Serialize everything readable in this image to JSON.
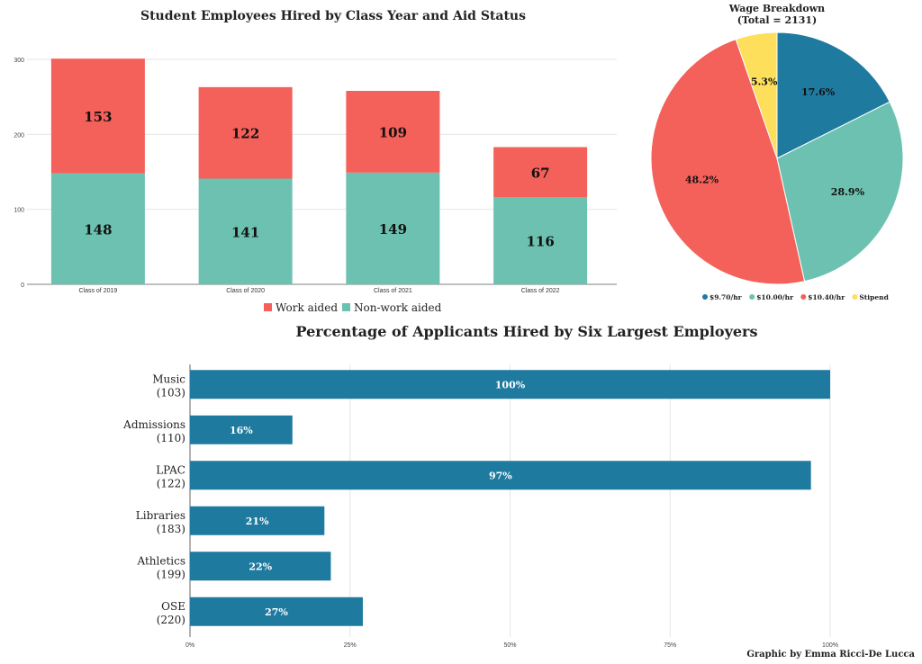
{
  "colors": {
    "red": "#f4605a",
    "teal": "#6cc1b0",
    "blue": "#1f7aa0",
    "yellow": "#fddf5c"
  },
  "credit": "Graphic by Emma Ricci-De Lucca",
  "chart_data": [
    {
      "type": "bar",
      "stacked": true,
      "orientation": "vertical",
      "title": "Student Employees Hired by Class Year and Aid Status",
      "categories": [
        "Class of 2019",
        "Class of 2020",
        "Class of 2021",
        "Class of 2022"
      ],
      "series": [
        {
          "name": "Non-work aided",
          "color": "#6cc1b0",
          "values": [
            148,
            141,
            149,
            116
          ]
        },
        {
          "name": "Work aided",
          "color": "#f4605a",
          "values": [
            153,
            122,
            109,
            67
          ]
        }
      ],
      "legend_order": [
        "Work aided",
        "Non-work aided"
      ],
      "ylim": [
        0,
        300
      ],
      "yticks": [
        "0",
        "100",
        "200",
        "300"
      ],
      "grid": true,
      "legend": "bottom"
    },
    {
      "type": "pie",
      "title": "Wage Breakdown",
      "subtitle": "(Total = 2131)",
      "slices": [
        {
          "label": "$9.70/hr",
          "value": 17.6,
          "display": "17.6%",
          "color": "#1f7aa0"
        },
        {
          "label": "$10.00/hr",
          "value": 28.9,
          "display": "28.9%",
          "color": "#6cc1b0"
        },
        {
          "label": "$10.40/hr",
          "value": 48.2,
          "display": "48.2%",
          "color": "#f4605a"
        },
        {
          "label": "Stipend",
          "value": 5.3,
          "display": "5.3%",
          "color": "#fddf5c"
        }
      ],
      "legend": "bottom"
    },
    {
      "type": "bar",
      "orientation": "horizontal",
      "title": "Percentage of Applicants Hired by Six Largest Employers",
      "categories": [
        {
          "name": "Music",
          "count": "(103)"
        },
        {
          "name": "Admissions",
          "count": "(110)"
        },
        {
          "name": "LPAC",
          "count": "(122)"
        },
        {
          "name": "Libraries",
          "count": "(183)"
        },
        {
          "name": "Athletics",
          "count": "(199)"
        },
        {
          "name": "OSE",
          "count": "(220)"
        }
      ],
      "values": [
        100,
        16,
        97,
        21,
        22,
        27
      ],
      "labels": [
        "100%",
        "16%",
        "97%",
        "21%",
        "22%",
        "27%"
      ],
      "color": "#1f7aa0",
      "xlim": [
        0,
        100
      ],
      "xticks": [
        "0%",
        "25%",
        "50%",
        "75%",
        "100%"
      ],
      "grid": true
    }
  ]
}
